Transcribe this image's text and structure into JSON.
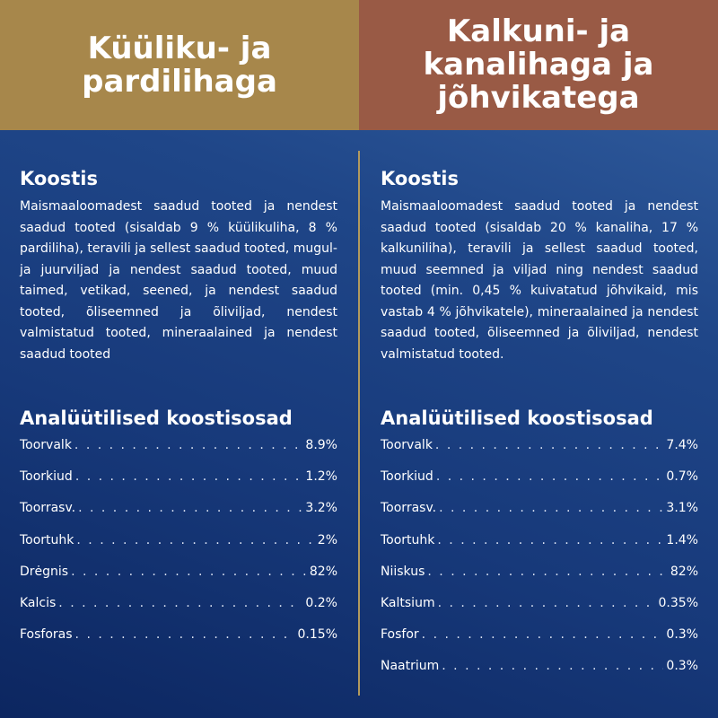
{
  "left": {
    "title": "Küüliku- ja pardilihaga",
    "composition_heading": "Koostis",
    "composition": "Maismaaloomadest saadud tooted ja nendest saadud tooted (sisaldab 9 % küülikuliha, 8 % pardiliha), teravili ja sellest saadud tooted, mugul- ja juurviljad ja nendest saadud tooted, muud taimed, vetikad, seened, ja nendest saadud tooted, õliseemned ja õliviljad, nendest valmistatud tooted,  mineraalained ja nendest saadud tooted",
    "analysis_heading": "Analüütilised koostisosad",
    "rows": [
      {
        "label": "Toorvalk",
        "value": "8.9%"
      },
      {
        "label": "Toorkiud",
        "value": "1.2%"
      },
      {
        "label": "Toorrasv.",
        "value": "3.2%"
      },
      {
        "label": "Toortuhk",
        "value": "2%"
      },
      {
        "label": "Drėgnis",
        "value": "82%"
      },
      {
        "label": "Kalcis",
        "value": "0.2%"
      },
      {
        "label": "Fosforas",
        "value": "0.15%"
      }
    ]
  },
  "right": {
    "title": "Kalkuni- ja kanalihaga ja jõhvikatega",
    "composition_heading": "Koostis",
    "composition": "Maismaaloomadest saadud tooted ja nendest saadud tooted (sisaldab 20 % kanaliha, 17 % kalkuniliha), teravili ja sellest saadud tooted, muud seemned ja viljad ning nendest saadud tooted (min. 0,45 % kuivatatud jõhvikaid, mis vastab 4 % jõhvikatele), mineraalained ja nendest saadud tooted, õliseemned ja õliviljad, nendest valmistatud tooted.",
    "analysis_heading": "Analüütilised koostisosad",
    "rows": [
      {
        "label": "Toorvalk",
        "value": "7.4%"
      },
      {
        "label": "Toorkiud",
        "value": "0.7%"
      },
      {
        "label": "Toorrasv.",
        "value": "3.1%"
      },
      {
        "label": "Toortuhk",
        "value": "1.4%"
      },
      {
        "label": "Niiskus",
        "value": "82%"
      },
      {
        "label": "Kaltsium",
        "value": "0.35%"
      },
      {
        "label": "Fosfor",
        "value": "0.3%"
      },
      {
        "label": "Naatrium",
        "value": "0.3%"
      }
    ]
  },
  "colors": {
    "left_header": "#a7874b",
    "right_header": "#995a45",
    "background": "#1f4688",
    "divider": "#b29a5e"
  }
}
